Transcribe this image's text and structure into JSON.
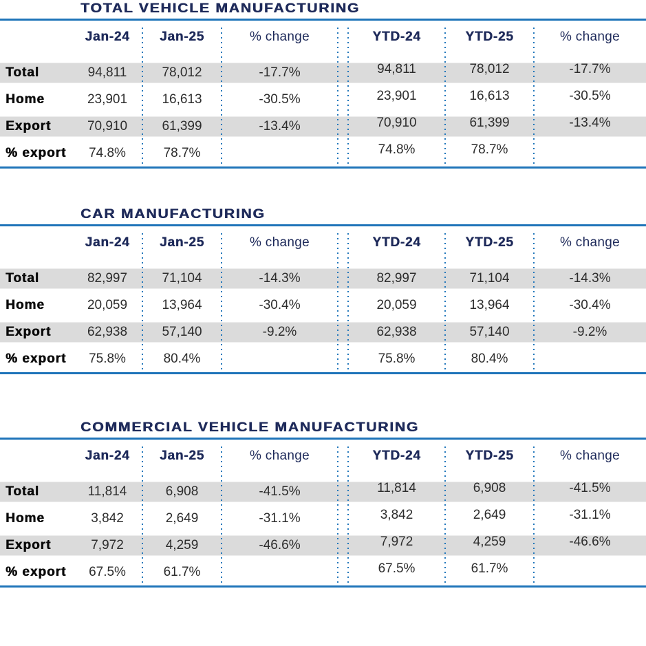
{
  "colors": {
    "navy": "#1e2a5a",
    "rule_blue": "#1e74b9",
    "dot_blue": "#2277bb",
    "stripe_gray": "#dbdbdb",
    "value_text": "#2d2d2d",
    "label_text": "#0a0a0a"
  },
  "tables": [
    {
      "title": "TOTAL VEHICLE MANUFACTURING",
      "columns": [
        "Jan-24",
        "Jan-25",
        "% change",
        "YTD-24",
        "YTD-25",
        "% change"
      ],
      "rows": [
        {
          "label": "Total",
          "values": [
            "94,811",
            "78,012",
            "-17.7%",
            "94,811",
            "78,012",
            "-17.7%"
          ]
        },
        {
          "label": "Home",
          "values": [
            "23,901",
            "16,613",
            "-30.5%",
            "23,901",
            "16,613",
            "-30.5%"
          ]
        },
        {
          "label": "Export",
          "values": [
            "70,910",
            "61,399",
            "-13.4%",
            "70,910",
            "61,399",
            "-13.4%"
          ]
        },
        {
          "label": "% export",
          "values": [
            "74.8%",
            "78.7%",
            "",
            "74.8%",
            "78.7%",
            ""
          ]
        }
      ]
    },
    {
      "title": "CAR MANUFACTURING",
      "columns": [
        "Jan-24",
        "Jan-25",
        "% change",
        "YTD-24",
        "YTD-25",
        "% change"
      ],
      "rows": [
        {
          "label": "Total",
          "values": [
            "82,997",
            "71,104",
            "-14.3%",
            "82,997",
            "71,104",
            "-14.3%"
          ]
        },
        {
          "label": "Home",
          "values": [
            "20,059",
            "13,964",
            "-30.4%",
            "20,059",
            "13,964",
            "-30.4%"
          ]
        },
        {
          "label": "Export",
          "values": [
            "62,938",
            "57,140",
            "-9.2%",
            "62,938",
            "57,140",
            "-9.2%"
          ]
        },
        {
          "label": "% export",
          "values": [
            "75.8%",
            "80.4%",
            "",
            "75.8%",
            "80.4%",
            ""
          ]
        }
      ]
    },
    {
      "title": "COMMERCIAL VEHICLE MANUFACTURING",
      "columns": [
        "Jan-24",
        "Jan-25",
        "% change",
        "YTD-24",
        "YTD-25",
        "% change"
      ],
      "rows": [
        {
          "label": "Total",
          "values": [
            "11,814",
            "6,908",
            "-41.5%",
            "11,814",
            "6,908",
            "-41.5%"
          ]
        },
        {
          "label": "Home",
          "values": [
            "3,842",
            "2,649",
            "-31.1%",
            "3,842",
            "2,649",
            "-31.1%"
          ]
        },
        {
          "label": "Export",
          "values": [
            "7,972",
            "4,259",
            "-46.6%",
            "7,972",
            "4,259",
            "-46.6%"
          ]
        },
        {
          "label": "% export",
          "values": [
            "67.5%",
            "61.7%",
            "",
            "67.5%",
            "61.7%",
            ""
          ]
        }
      ]
    }
  ]
}
